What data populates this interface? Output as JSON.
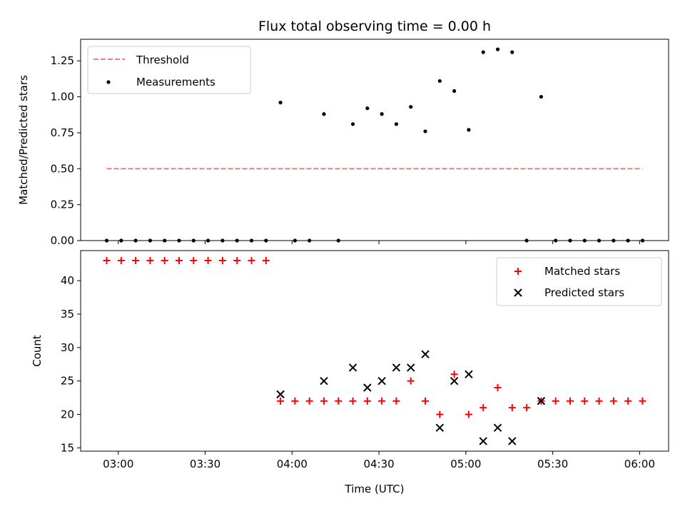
{
  "chart_data": [
    {
      "type": "scatter",
      "title": "Flux total observing time = 0.00 h",
      "xlabel": "",
      "ylabel": "Matched/Predicted stars",
      "ylim": [
        0,
        1.4
      ],
      "yticks": [
        "0.00",
        "0.25",
        "0.50",
        "0.75",
        "1.00",
        "1.25"
      ],
      "xlim": [
        "02:47",
        "06:10"
      ],
      "grid": false,
      "legend_position": "top-left",
      "threshold": {
        "name": "Threshold",
        "color": "#f08080",
        "style": "dashed",
        "y": 0.5,
        "x_start": "02:56",
        "x_end": "06:01"
      },
      "series": [
        {
          "name": "Measurements",
          "color": "#000000",
          "marker": "dot",
          "x": [
            "02:56",
            "03:01",
            "03:06",
            "03:11",
            "03:16",
            "03:21",
            "03:26",
            "03:31",
            "03:36",
            "03:41",
            "03:46",
            "03:51",
            "03:56",
            "04:01",
            "04:06",
            "04:11",
            "04:16",
            "04:21",
            "04:26",
            "04:31",
            "04:36",
            "04:41",
            "04:46",
            "04:51",
            "04:56",
            "05:01",
            "05:06",
            "05:11",
            "05:16",
            "05:21",
            "05:26",
            "05:31",
            "05:36",
            "05:41",
            "05:46",
            "05:51",
            "05:56",
            "06:01"
          ],
          "y": [
            0,
            0,
            0,
            0,
            0,
            0,
            0,
            0,
            0,
            0,
            0,
            0,
            0.96,
            0,
            0,
            0.88,
            0,
            0.81,
            0.92,
            0.88,
            0.81,
            0.93,
            0.76,
            1.11,
            1.04,
            0.77,
            1.31,
            1.33,
            1.31,
            0,
            1.0,
            0,
            0,
            0,
            0,
            0,
            0,
            0
          ]
        }
      ]
    },
    {
      "type": "scatter",
      "title": "",
      "xlabel": "Time (UTC)",
      "ylabel": "Count",
      "ylim": [
        14.5,
        44.5
      ],
      "yticks": [
        "15",
        "20",
        "25",
        "30",
        "35",
        "40"
      ],
      "xticks": [
        "03:00",
        "03:30",
        "04:00",
        "04:30",
        "05:00",
        "05:30",
        "06:00"
      ],
      "xlim": [
        "02:47",
        "06:10"
      ],
      "grid": false,
      "legend_position": "top-right",
      "series": [
        {
          "name": "Matched stars",
          "color": "#ff0000",
          "marker": "plus",
          "x": [
            "02:56",
            "03:01",
            "03:06",
            "03:11",
            "03:16",
            "03:21",
            "03:26",
            "03:31",
            "03:36",
            "03:41",
            "03:46",
            "03:51",
            "03:56",
            "04:01",
            "04:06",
            "04:11",
            "04:16",
            "04:21",
            "04:26",
            "04:31",
            "04:36",
            "04:41",
            "04:46",
            "04:51",
            "04:56",
            "05:01",
            "05:06",
            "05:11",
            "05:16",
            "05:21",
            "05:26",
            "05:31",
            "05:36",
            "05:41",
            "05:46",
            "05:51",
            "05:56",
            "06:01"
          ],
          "y": [
            43,
            43,
            43,
            43,
            43,
            43,
            43,
            43,
            43,
            43,
            43,
            43,
            22,
            22,
            22,
            22,
            22,
            22,
            22,
            22,
            22,
            25,
            22,
            20,
            26,
            20,
            21,
            24,
            21,
            21,
            22,
            22,
            22,
            22,
            22,
            22,
            22,
            22
          ]
        },
        {
          "name": "Predicted stars",
          "color": "#000000",
          "marker": "x",
          "x": [
            "03:56",
            "04:11",
            "04:21",
            "04:26",
            "04:31",
            "04:36",
            "04:41",
            "04:46",
            "04:51",
            "04:56",
            "05:01",
            "05:06",
            "05:11",
            "05:16",
            "05:26"
          ],
          "y": [
            23,
            25,
            27,
            24,
            25,
            27,
            27,
            29,
            18,
            25,
            26,
            16,
            18,
            16,
            22
          ]
        }
      ]
    }
  ]
}
